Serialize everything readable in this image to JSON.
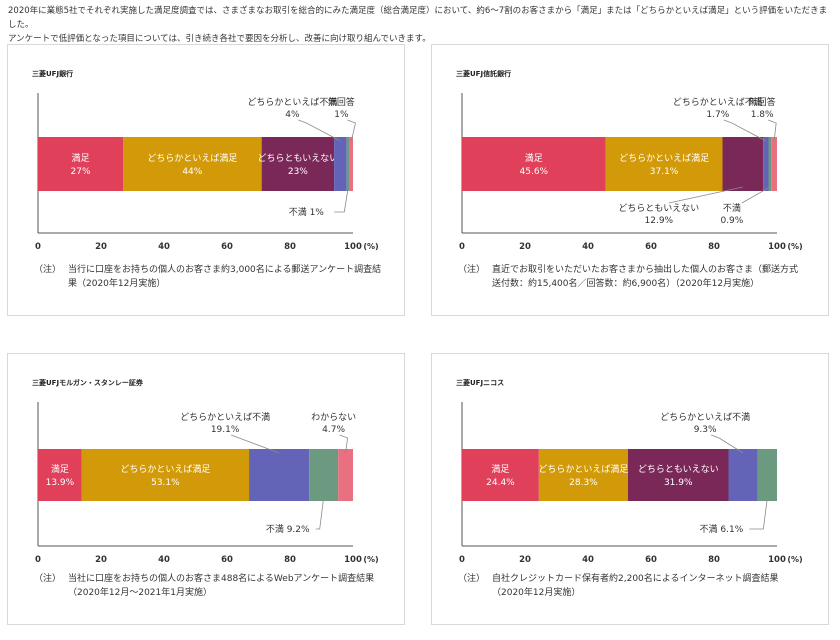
{
  "intro": {
    "line1": "2020年に業態5社でそれぞれ実施した満足度調査では、さまざまなお取引を総合的にみた満足度（総合満足度）において、約6～7割のお客さまから「満足」または「どちらかといえば満足」という評価をいただきました。",
    "line2": "アンケートで低評価となった項目については、引き続き各社で要因を分析し、改善に向け取り組んでいきます。"
  },
  "colors": {
    "manzoku": "#e0405a",
    "dochirakato_manzoku": "#d29a08",
    "dochiratomo": "#7a2858",
    "dochirakato_fuman": "#6363b8",
    "fuman": "#6b9a80",
    "muteikai": "#e87080"
  },
  "chart_data": [
    {
      "type": "bar",
      "orientation": "horizontal-stacked",
      "title": "三菱UFJ銀行",
      "xlim": [
        0,
        100
      ],
      "x_ticks": [
        "0",
        "20",
        "40",
        "60",
        "80",
        "100"
      ],
      "x_unit": "(%)",
      "series": [
        {
          "name": "満足",
          "value": 27,
          "label": "27%",
          "color_key": "manzoku",
          "label_position": "inside"
        },
        {
          "name": "どちらかといえば満足",
          "value": 44,
          "label": "44%",
          "color_key": "dochirakato_manzoku",
          "label_position": "inside"
        },
        {
          "name": "どちらともいえない",
          "value": 23,
          "label": "23%",
          "color_key": "dochiratomo",
          "label_position": "inside"
        },
        {
          "name": "どちらかといえば不満",
          "value": 4,
          "label": "4%",
          "color_key": "dochirakato_fuman",
          "label_position": "above"
        },
        {
          "name": "不満",
          "value": 1,
          "label": "1%",
          "color_key": "fuman",
          "label_position": "below-inline"
        },
        {
          "name": "無回答",
          "value": 1,
          "label": "1%",
          "color_key": "muteikai",
          "label_position": "above"
        }
      ],
      "note": {
        "mark": "（注）",
        "text": "当行に口座をお持ちの個人のお客さま約3,000名による郵送アンケート調査結果（2020年12月実施）"
      }
    },
    {
      "type": "bar",
      "orientation": "horizontal-stacked",
      "title": "三菱UFJ信託銀行",
      "xlim": [
        0,
        100
      ],
      "x_ticks": [
        "0",
        "20",
        "40",
        "60",
        "80",
        "100"
      ],
      "x_unit": "(%)",
      "series": [
        {
          "name": "満足",
          "value": 45.6,
          "label": "45.6%",
          "color_key": "manzoku",
          "label_position": "inside"
        },
        {
          "name": "どちらかといえば満足",
          "value": 37.1,
          "label": "37.1%",
          "color_key": "dochirakato_manzoku",
          "label_position": "inside"
        },
        {
          "name": "どちらともいえない",
          "value": 12.9,
          "label": "12.9%",
          "color_key": "dochiratomo",
          "label_position": "below"
        },
        {
          "name": "どちらかといえば不満",
          "value": 1.7,
          "label": "1.7%",
          "color_key": "dochirakato_fuman",
          "label_position": "above"
        },
        {
          "name": "不満",
          "value": 0.9,
          "label": "0.9%",
          "color_key": "fuman",
          "label_position": "below"
        },
        {
          "name": "無回答",
          "value": 1.8,
          "label": "1.8%",
          "color_key": "muteikai",
          "label_position": "above"
        }
      ],
      "note": {
        "mark": "（注）",
        "text": "直近でお取引をいただいたお客さまから抽出した個人のお客さま（郵送方式　送付数：約15,400名／回答数：約6,900名）（2020年12月実施）"
      }
    },
    {
      "type": "bar",
      "orientation": "horizontal-stacked",
      "title": "三菱UFJモルガン・スタンレー証券",
      "xlim": [
        0,
        100
      ],
      "x_ticks": [
        "0",
        "20",
        "40",
        "60",
        "80",
        "100"
      ],
      "x_unit": "(%)",
      "series": [
        {
          "name": "満足",
          "value": 13.9,
          "label": "13.9%",
          "color_key": "manzoku",
          "label_position": "inside"
        },
        {
          "name": "どちらかといえば満足",
          "value": 53.1,
          "label": "53.1%",
          "color_key": "dochirakato_manzoku",
          "label_position": "inside"
        },
        {
          "name": "どちらかといえば不満",
          "value": 19.1,
          "label": "19.1%",
          "color_key": "dochirakato_fuman",
          "label_position": "above"
        },
        {
          "name": "不満",
          "value": 9.2,
          "label": "9.2%",
          "color_key": "fuman",
          "label_position": "below-inline"
        },
        {
          "name": "わからない",
          "value": 4.7,
          "label": "4.7%",
          "color_key": "muteikai",
          "label_position": "above"
        }
      ],
      "note": {
        "mark": "（注）",
        "text": "当社に口座をお持ちの個人のお客さま488名によるWebアンケート調査結果（2020年12月～2021年1月実施）"
      }
    },
    {
      "type": "bar",
      "orientation": "horizontal-stacked",
      "title": "三菱UFJニコス",
      "xlim": [
        0,
        100
      ],
      "x_ticks": [
        "0",
        "20",
        "40",
        "60",
        "80",
        "100"
      ],
      "x_unit": "(%)",
      "series": [
        {
          "name": "満足",
          "value": 24.4,
          "label": "24.4%",
          "color_key": "manzoku",
          "label_position": "inside"
        },
        {
          "name": "どちらかといえば満足",
          "value": 28.3,
          "label": "28.3%",
          "color_key": "dochirakato_manzoku",
          "label_position": "inside"
        },
        {
          "name": "どちらともいえない",
          "value": 31.9,
          "label": "31.9%",
          "color_key": "dochiratomo",
          "label_position": "inside"
        },
        {
          "name": "どちらかといえば不満",
          "value": 9.3,
          "label": "9.3%",
          "color_key": "dochirakato_fuman",
          "label_position": "above"
        },
        {
          "name": "不満",
          "value": 6.1,
          "label": "6.1%",
          "color_key": "fuman",
          "label_position": "below-inline"
        }
      ],
      "note": {
        "mark": "（注）",
        "text": "自社クレジットカード保有者約2,200名によるインターネット調査結果（2020年12月実施）"
      }
    }
  ]
}
